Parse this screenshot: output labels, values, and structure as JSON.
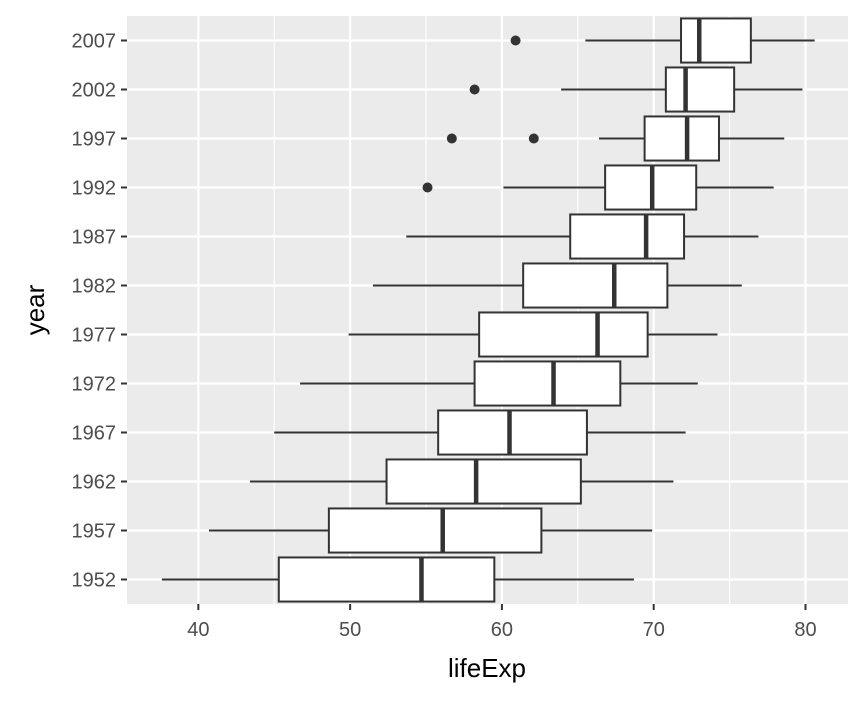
{
  "chart_data": {
    "type": "boxplot",
    "orientation": "horizontal",
    "xlabel": "lifeExp",
    "ylabel": "year",
    "xlim": [
      35.3,
      82.8
    ],
    "x_ticks": [
      40,
      50,
      60,
      70,
      80
    ],
    "grid": true,
    "background": "#ebebeb",
    "box_fill": "#ffffff",
    "line_color": "#333333",
    "categories": [
      "1952",
      "1957",
      "1962",
      "1967",
      "1972",
      "1977",
      "1982",
      "1987",
      "1992",
      "1997",
      "2002",
      "2007"
    ],
    "boxes": [
      {
        "year": "1952",
        "min": 37.6,
        "q1": 45.3,
        "median": 54.7,
        "q3": 59.5,
        "max": 68.7,
        "outliers": []
      },
      {
        "year": "1957",
        "min": 40.7,
        "q1": 48.6,
        "median": 56.1,
        "q3": 62.6,
        "max": 69.9,
        "outliers": []
      },
      {
        "year": "1962",
        "min": 43.4,
        "q1": 52.4,
        "median": 58.3,
        "q3": 65.2,
        "max": 71.3,
        "outliers": []
      },
      {
        "year": "1967",
        "min": 45.0,
        "q1": 55.8,
        "median": 60.5,
        "q3": 65.6,
        "max": 72.1,
        "outliers": []
      },
      {
        "year": "1972",
        "min": 46.7,
        "q1": 58.2,
        "median": 63.4,
        "q3": 67.8,
        "max": 72.9,
        "outliers": []
      },
      {
        "year": "1977",
        "min": 49.9,
        "q1": 58.5,
        "median": 66.3,
        "q3": 69.6,
        "max": 74.2,
        "outliers": []
      },
      {
        "year": "1982",
        "min": 51.5,
        "q1": 61.4,
        "median": 67.4,
        "q3": 70.9,
        "max": 75.8,
        "outliers": []
      },
      {
        "year": "1987",
        "min": 53.7,
        "q1": 64.5,
        "median": 69.5,
        "q3": 72.0,
        "max": 76.9,
        "outliers": []
      },
      {
        "year": "1992",
        "min": 60.1,
        "q1": 66.8,
        "median": 69.9,
        "q3": 72.8,
        "max": 77.9,
        "outliers": [
          55.1
        ]
      },
      {
        "year": "1997",
        "min": 66.4,
        "q1": 69.4,
        "median": 72.2,
        "q3": 74.3,
        "max": 78.6,
        "outliers": [
          56.7,
          62.1
        ]
      },
      {
        "year": "2002",
        "min": 63.9,
        "q1": 70.8,
        "median": 72.1,
        "q3": 75.3,
        "max": 79.8,
        "outliers": [
          58.2
        ]
      },
      {
        "year": "2007",
        "min": 65.5,
        "q1": 71.8,
        "median": 73.0,
        "q3": 76.4,
        "max": 80.6,
        "outliers": [
          60.9
        ]
      }
    ]
  }
}
